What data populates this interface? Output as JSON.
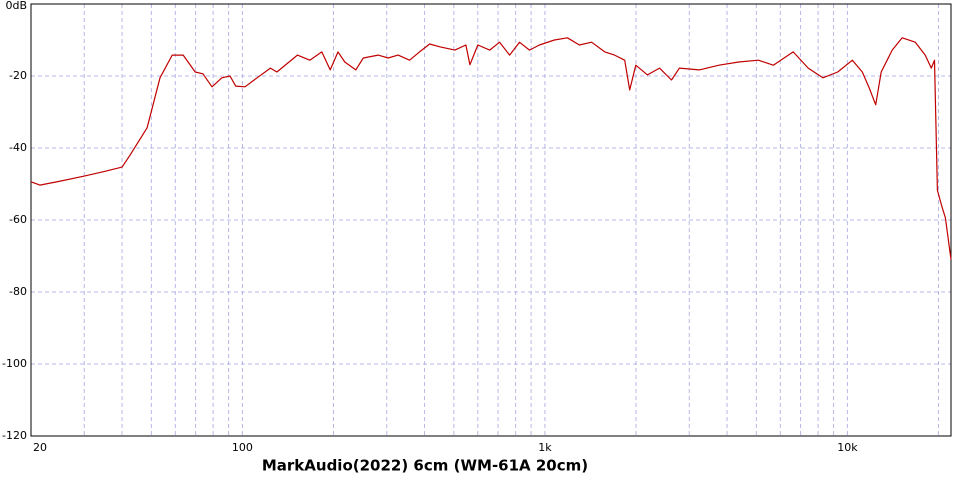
{
  "chart_data": {
    "type": "line",
    "title": "MarkAudio(2022) 6cm (WM-61A 20cm)",
    "x": [
      20,
      21.4,
      25,
      30,
      35,
      40,
      42.5,
      48.4,
      53.4,
      58.6,
      63.7,
      69.8,
      74,
      79.3,
      85.5,
      91,
      95,
      102,
      111.8,
      123.7,
      130,
      152,
      167,
      183,
      195,
      207,
      218,
      237,
      251,
      281,
      303,
      327,
      357,
      385,
      416,
      449,
      504,
      548,
      565,
      600,
      657,
      708,
      764,
      824,
      889,
      959,
      1075,
      1187,
      1300,
      1427,
      1577,
      1700,
      1836,
      1906,
      1997,
      2184,
      2392,
      2620,
      2783,
      3235,
      3760,
      4370,
      5080,
      5690,
      6620,
      7420,
      8300,
      9290,
      10390,
      11200,
      11800,
      12400,
      12930,
      14060,
      15170,
      16760,
      18080,
      18940,
      19400,
      19840,
      20450,
      21080,
      22000
    ],
    "values": [
      -49.4,
      -50.3,
      -49.2,
      -47.8,
      -46.5,
      -45.3,
      -42,
      -34.4,
      -20.5,
      -14.2,
      -14.2,
      -18.9,
      -19.4,
      -23,
      -20.5,
      -20,
      -22.8,
      -23,
      -20.5,
      -17.8,
      -18.9,
      -14.2,
      -15.6,
      -13.3,
      -18.3,
      -13.3,
      -16.1,
      -18.3,
      -15,
      -14.2,
      -15,
      -14.2,
      -15.6,
      -13.3,
      -11.1,
      -11.9,
      -12.8,
      -11.4,
      -16.9,
      -11.4,
      -12.8,
      -10.6,
      -14.2,
      -10.6,
      -12.8,
      -11.4,
      -10,
      -9.4,
      -11.4,
      -10.6,
      -13.3,
      -14.2,
      -15.6,
      -23.9,
      -17,
      -19.7,
      -17.8,
      -21.1,
      -17.8,
      -18.3,
      -17,
      -16.1,
      -15.6,
      -17,
      -13.3,
      -17.8,
      -20.5,
      -18.9,
      -15.6,
      -18.9,
      -23.3,
      -28,
      -18.9,
      -12.8,
      -9.4,
      -10.6,
      -14.2,
      -17.8,
      -15.6,
      -51.7,
      -55.8,
      -59.4,
      -71
    ],
    "color": "#c00000",
    "log_x": true,
    "xlim": [
      20,
      22000
    ],
    "xticks": [
      20,
      100,
      {
        "value": 1000,
        "label": "1k"
      },
      {
        "value": 10000,
        "label": "10k"
      }
    ],
    "xminor": [
      30,
      40,
      50,
      60,
      70,
      80,
      90,
      200,
      300,
      400,
      500,
      600,
      700,
      800,
      900,
      2000,
      3000,
      4000,
      5000,
      6000,
      7000,
      8000,
      9000,
      20000
    ],
    "ylim": [
      -120,
      0
    ],
    "yticks": [
      {
        "value": 0,
        "label": "0dB"
      },
      -20,
      -40,
      -60,
      -80,
      -100,
      -120
    ],
    "grid": true
  }
}
